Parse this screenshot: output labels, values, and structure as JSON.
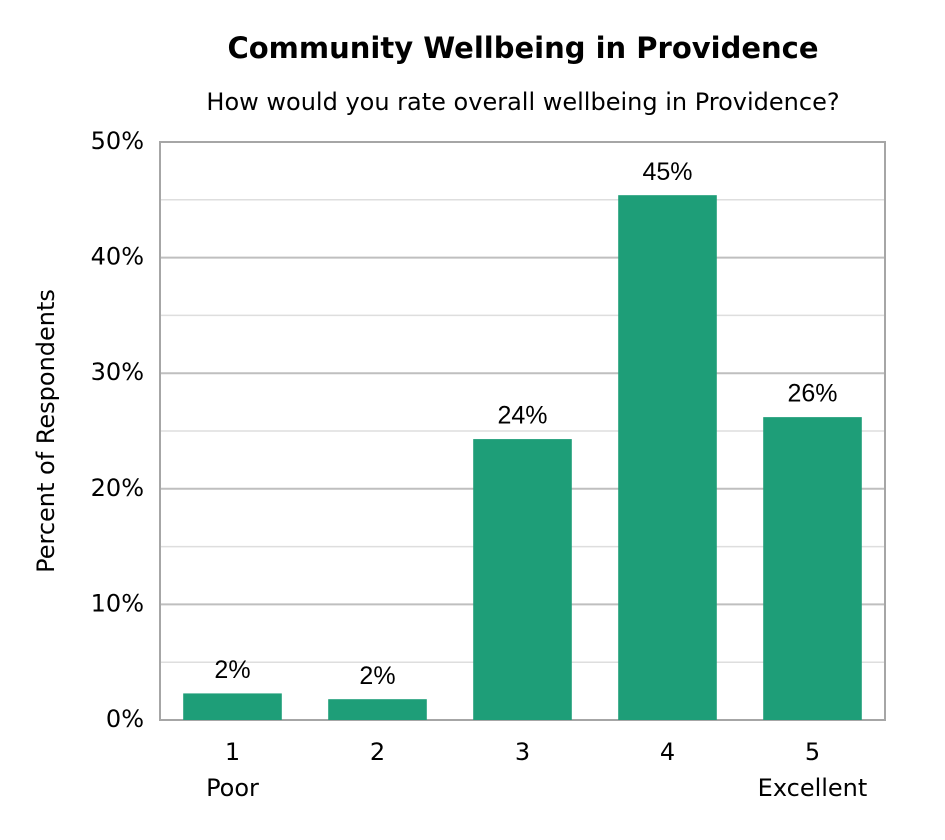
{
  "chart_data": {
    "type": "bar",
    "title": "Community Wellbeing in Providence",
    "subtitle": "How would you rate overall wellbeing in Providence?",
    "y_label": "Percent of Respondents",
    "categories": [
      "1",
      "2",
      "3",
      "4",
      "5"
    ],
    "category_sublabels": [
      "Poor",
      null,
      null,
      null,
      "Excellent"
    ],
    "values": [
      2.3,
      1.8,
      24.3,
      45.4,
      26.2
    ],
    "value_labels": [
      "2%",
      "2%",
      "24%",
      "45%",
      "26%"
    ],
    "color": "#1e9e78",
    "ylim": [
      0,
      50
    ],
    "yticks": [
      {
        "value": 0,
        "label": "0%"
      },
      {
        "value": 10,
        "label": "10%"
      },
      {
        "value": 20,
        "label": "20%"
      },
      {
        "value": 30,
        "label": "30%"
      },
      {
        "value": 40,
        "label": "40%"
      },
      {
        "value": 50,
        "label": "50%"
      }
    ],
    "minor_yticks": [
      5,
      15,
      25,
      35,
      45
    ],
    "grid": true
  }
}
